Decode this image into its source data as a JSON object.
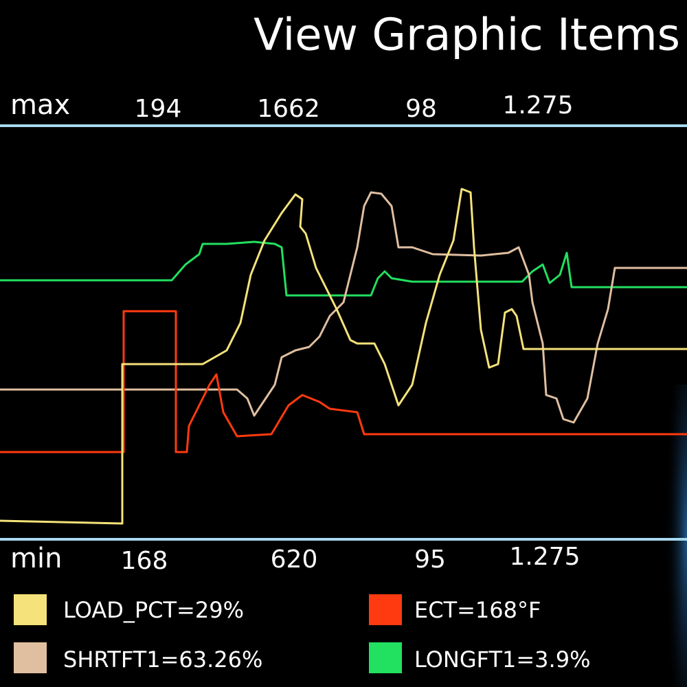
{
  "header": {
    "title": "View Graphic Items"
  },
  "max_row": {
    "label": "max",
    "values": [
      {
        "text": "194",
        "color": "#ffffff"
      },
      {
        "text": "1662",
        "color": "#ff4a2a"
      },
      {
        "text": "98",
        "color": "#ffffff"
      },
      {
        "text": "1.275",
        "color": "#3ef070"
      }
    ]
  },
  "min_row": {
    "label": "min",
    "values": [
      {
        "text": "168",
        "color": "#ffffff"
      },
      {
        "text": "620",
        "color": "#ff4a2a"
      },
      {
        "text": "95",
        "color": "#ffffff"
      },
      {
        "text": "1.275",
        "color": "#3ef070"
      }
    ]
  },
  "legend": [
    {
      "label": "LOAD_PCT=29%",
      "color": "#f5e27a"
    },
    {
      "label": "ECT=168°F",
      "color": "#ff3a10"
    },
    {
      "label": "SHRTFT1=63.26%",
      "color": "#e0bfa0"
    },
    {
      "label": "LONGFT1=3.9%",
      "color": "#22e060"
    }
  ]
}
